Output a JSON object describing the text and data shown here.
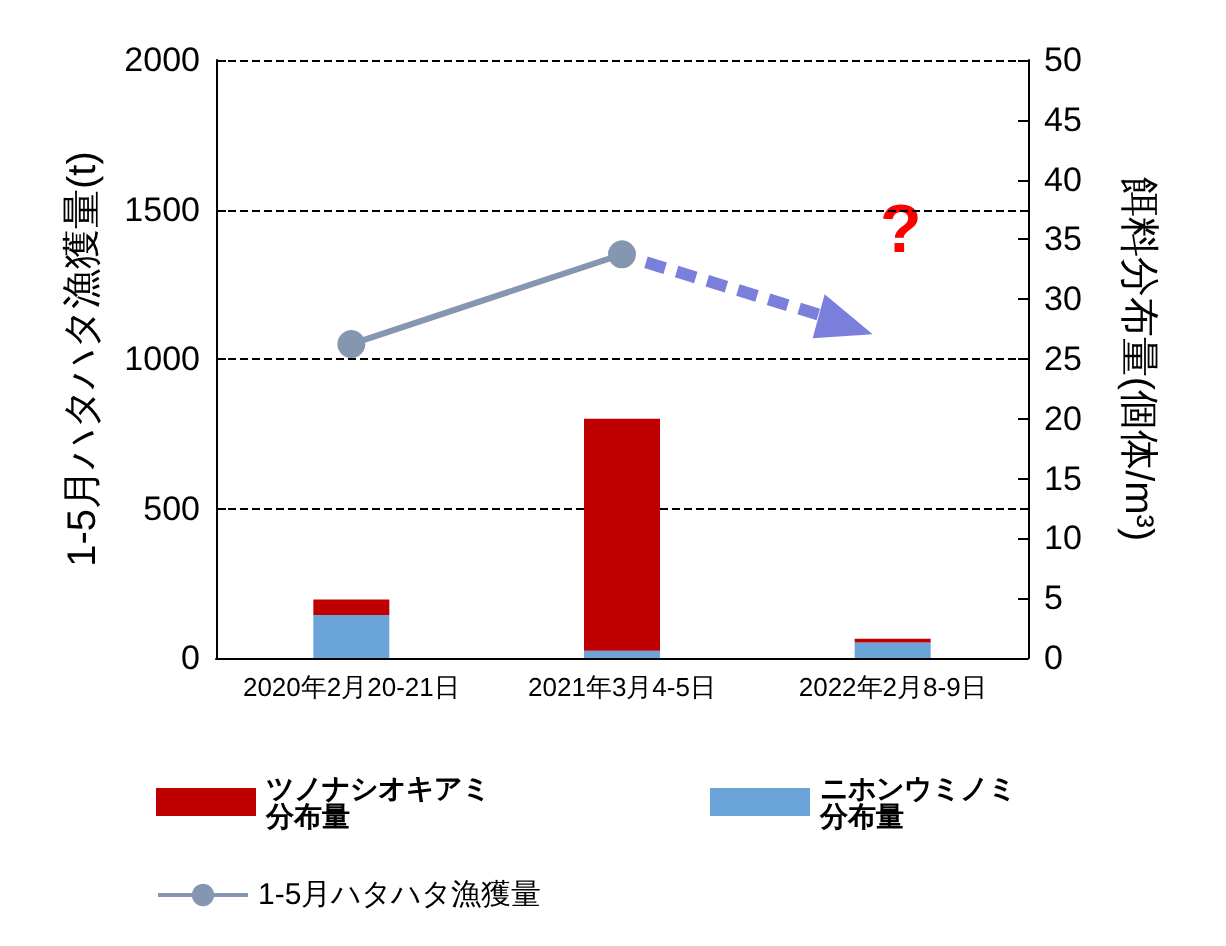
{
  "chart_data": {
    "type": "bar",
    "categories": [
      "2020年2月20-21日",
      "2021年3月4-5日",
      "2022年2月8-9日"
    ],
    "ylabel": "1-5月ハタハタ漁獲量(t)",
    "y2label": "餌料分布量(個体/m³)",
    "ylim": [
      0,
      2000
    ],
    "yticks": [
      0,
      500,
      1000,
      1500,
      2000
    ],
    "y2lim": [
      0,
      50
    ],
    "y2ticks": [
      0,
      5,
      10,
      15,
      20,
      25,
      30,
      35,
      40,
      45,
      50
    ],
    "stacked": true,
    "grid": "y",
    "legend": "bottom",
    "annotations": [
      "?"
    ],
    "series": [
      {
        "name": "ニホンウミノミ分布量",
        "axis": "y2",
        "color": "#6aa4d9",
        "values": [
          3.6,
          0.6,
          1.3
        ]
      },
      {
        "name": "ツノナシオキアミ分布量",
        "axis": "y2",
        "color": "#c00000",
        "values": [
          1.3,
          19.4,
          0.3
        ]
      },
      {
        "name": "1-5月ハタハタ漁獲量",
        "type": "line",
        "color": "#8496b0",
        "marker": "circle",
        "values": [
          1050,
          1350,
          null
        ]
      }
    ]
  }
}
